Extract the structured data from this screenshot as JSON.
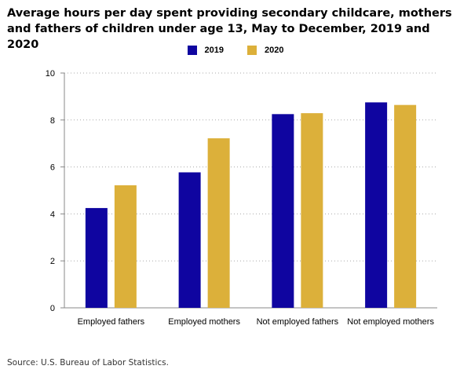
{
  "chart_data": {
    "type": "bar",
    "title": "Average hours per day spent providing secondary childcare, mothers and fathers of children under age 13, May to December, 2019 and 2020",
    "categories": [
      "Employed fathers",
      "Employed mothers",
      "Not employed fathers",
      "Not employed mothers"
    ],
    "series": [
      {
        "name": "2019",
        "color": "#0f05a0",
        "values": [
          4.25,
          5.77,
          8.25,
          8.75
        ]
      },
      {
        "name": "2020",
        "color": "#dcb03a",
        "values": [
          5.22,
          7.22,
          8.29,
          8.64
        ]
      }
    ],
    "xlabel": "",
    "ylabel": "",
    "ylim": [
      0,
      10
    ],
    "yticks": [
      "0",
      "2",
      "4",
      "6",
      "8",
      "10"
    ],
    "grid": true,
    "legend": "top"
  },
  "source": "Source: U.S. Bureau of Labor Statistics."
}
